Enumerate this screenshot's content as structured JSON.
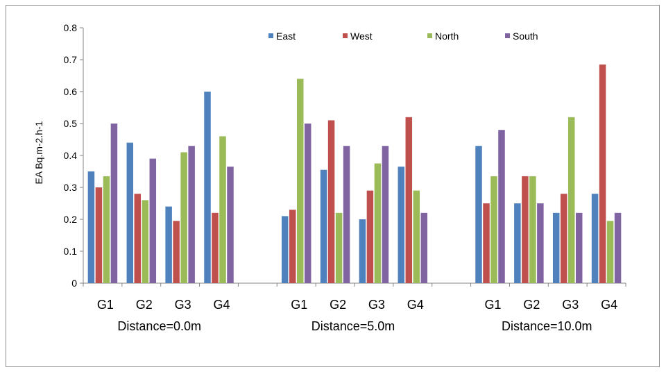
{
  "colors": {
    "East": "#4F81BD",
    "West": "#C0504D",
    "North": "#9BBB59",
    "South": "#8064A2"
  },
  "chart_data": {
    "type": "bar",
    "ylabel": "EA Bq.m-2.h-1",
    "xlabel": "",
    "ylim": [
      0,
      0.8
    ],
    "yticks": [
      "0",
      "0.1",
      "0.2",
      "0.3",
      "0.4",
      "0.5",
      "0.6",
      "0.7",
      "0.8"
    ],
    "legend_placement": "top",
    "grid": false,
    "series": [
      {
        "name": "East"
      },
      {
        "name": "West"
      },
      {
        "name": "North"
      },
      {
        "name": "South"
      }
    ],
    "groups": [
      {
        "label": "Distance=0.0m",
        "categories": [
          "G1",
          "G2",
          "G3",
          "G4"
        ],
        "values": [
          [
            0.35,
            0.3,
            0.335,
            0.5
          ],
          [
            0.44,
            0.28,
            0.26,
            0.39
          ],
          [
            0.24,
            0.195,
            0.41,
            0.43
          ],
          [
            0.6,
            0.22,
            0.46,
            0.365
          ]
        ]
      },
      {
        "label": "Distance=5.0m",
        "categories": [
          "G1",
          "G2",
          "G3",
          "G4"
        ],
        "values": [
          [
            0.21,
            0.23,
            0.64,
            0.5
          ],
          [
            0.355,
            0.51,
            0.22,
            0.43
          ],
          [
            0.2,
            0.29,
            0.375,
            0.43
          ],
          [
            0.365,
            0.52,
            0.29,
            0.22
          ]
        ]
      },
      {
        "label": "Distance=10.0m",
        "categories": [
          "G1",
          "G2",
          "G3",
          "G4"
        ],
        "values": [
          [
            0.43,
            0.25,
            0.335,
            0.48
          ],
          [
            0.25,
            0.335,
            0.335,
            0.25
          ],
          [
            0.22,
            0.28,
            0.52,
            0.22
          ],
          [
            0.28,
            0.685,
            0.195,
            0.22
          ]
        ]
      }
    ]
  }
}
